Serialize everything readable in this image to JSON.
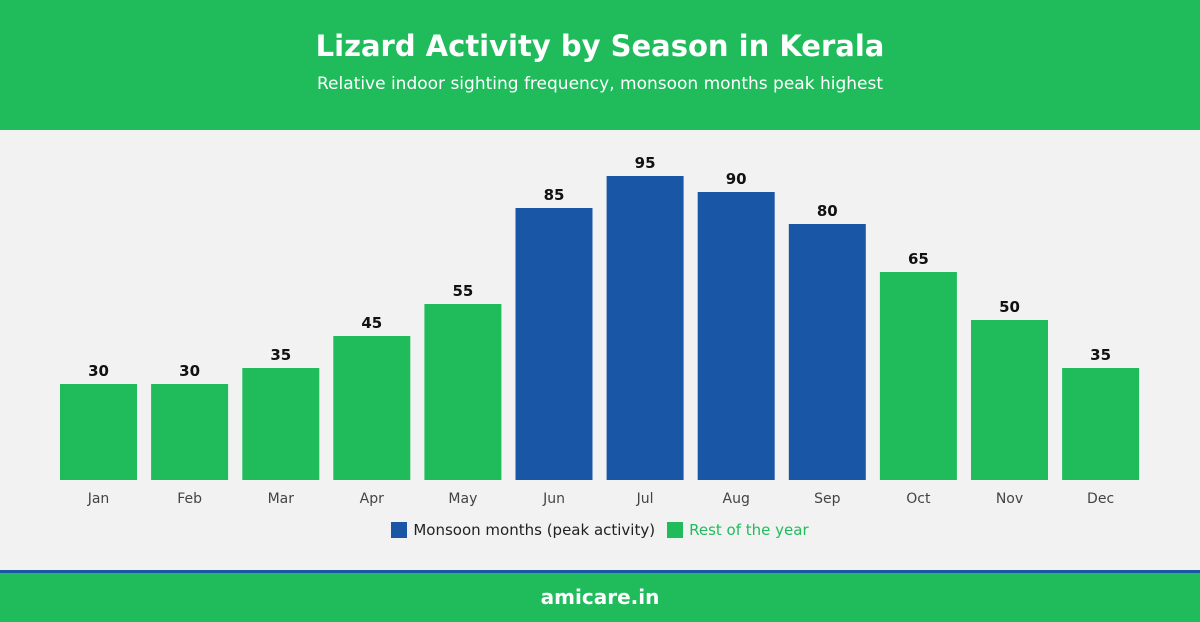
{
  "header": {
    "title": "Lizard Activity by Season in Kerala",
    "subtitle": "Relative indoor sighting frequency, monsoon months peak highest"
  },
  "colors": {
    "header_bg": "#20bc5c",
    "plot_bg": "#f2f2f2",
    "monsoon": "#1a56a6",
    "rest": "#20bc5c",
    "label_text": "#111111",
    "tick_text": "#444444",
    "footer_line": "#1a56a6"
  },
  "chart_data": {
    "type": "bar",
    "title": "Lizard Activity by Season in Kerala",
    "subtitle": "Relative indoor sighting frequency, monsoon months peak highest",
    "xlabel": "",
    "ylabel": "",
    "ylim": [
      0,
      100
    ],
    "grid": false,
    "legend_position": "bottom-center",
    "categories": [
      "Jan",
      "Feb",
      "Mar",
      "Apr",
      "May",
      "Jun",
      "Jul",
      "Aug",
      "Sep",
      "Oct",
      "Nov",
      "Dec"
    ],
    "values": [
      30,
      30,
      35,
      45,
      55,
      85,
      95,
      90,
      80,
      65,
      50,
      35
    ],
    "groups": [
      "rest",
      "rest",
      "rest",
      "rest",
      "rest",
      "monsoon",
      "monsoon",
      "monsoon",
      "monsoon",
      "rest",
      "rest",
      "rest"
    ],
    "data_labels": [
      "30",
      "30",
      "35",
      "45",
      "55",
      "85",
      "95",
      "90",
      "80",
      "65",
      "50",
      "35"
    ]
  },
  "legend": {
    "items": [
      {
        "key": "monsoon",
        "label": "Monsoon months (peak activity)",
        "color": "#1a56a6",
        "text_color": "#222222"
      },
      {
        "key": "rest",
        "label": "Rest of the year",
        "color": "#20bc5c",
        "text_color": "#20bc5c"
      }
    ]
  },
  "footer": {
    "text": "amicare.in"
  }
}
